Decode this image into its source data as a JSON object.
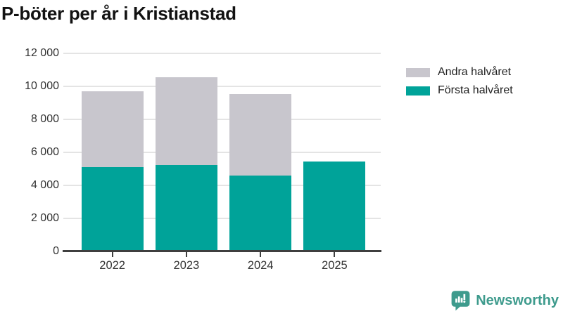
{
  "title": "P-böter per år i Kristianstad",
  "chart_data": {
    "type": "bar",
    "stacked": true,
    "title": "P-böter per år i Kristianstad",
    "categories": [
      "2022",
      "2023",
      "2024",
      "2025"
    ],
    "series": [
      {
        "name": "Första halvåret",
        "color": "#00a399",
        "values": [
          5100,
          5250,
          4600,
          5450
        ]
      },
      {
        "name": "Andra halvåret",
        "color": "#c8c6cd",
        "values": [
          4600,
          5300,
          4950,
          0
        ]
      }
    ],
    "totals": [
      9700,
      10550,
      9550,
      5450
    ],
    "xlabel": "",
    "ylabel": "",
    "ylim": [
      0,
      12000
    ],
    "ytick_step": 2000,
    "ytick_labels": [
      "0",
      "2 000",
      "4 000",
      "6 000",
      "8 000",
      "10 000",
      "12 000"
    ],
    "grid": true,
    "grid_color": "#e4e4e4",
    "axis_color": "#3f3f3f",
    "legend_position": "top-right"
  },
  "legend": {
    "items": [
      {
        "label": "Andra halvåret",
        "color": "#c8c6cd"
      },
      {
        "label": "Första halvåret",
        "color": "#00a399"
      }
    ]
  },
  "branding": {
    "label": "Newsworthy",
    "color": "#3e9b8d",
    "icon": "bar-chart-speech-bubble-icon"
  }
}
